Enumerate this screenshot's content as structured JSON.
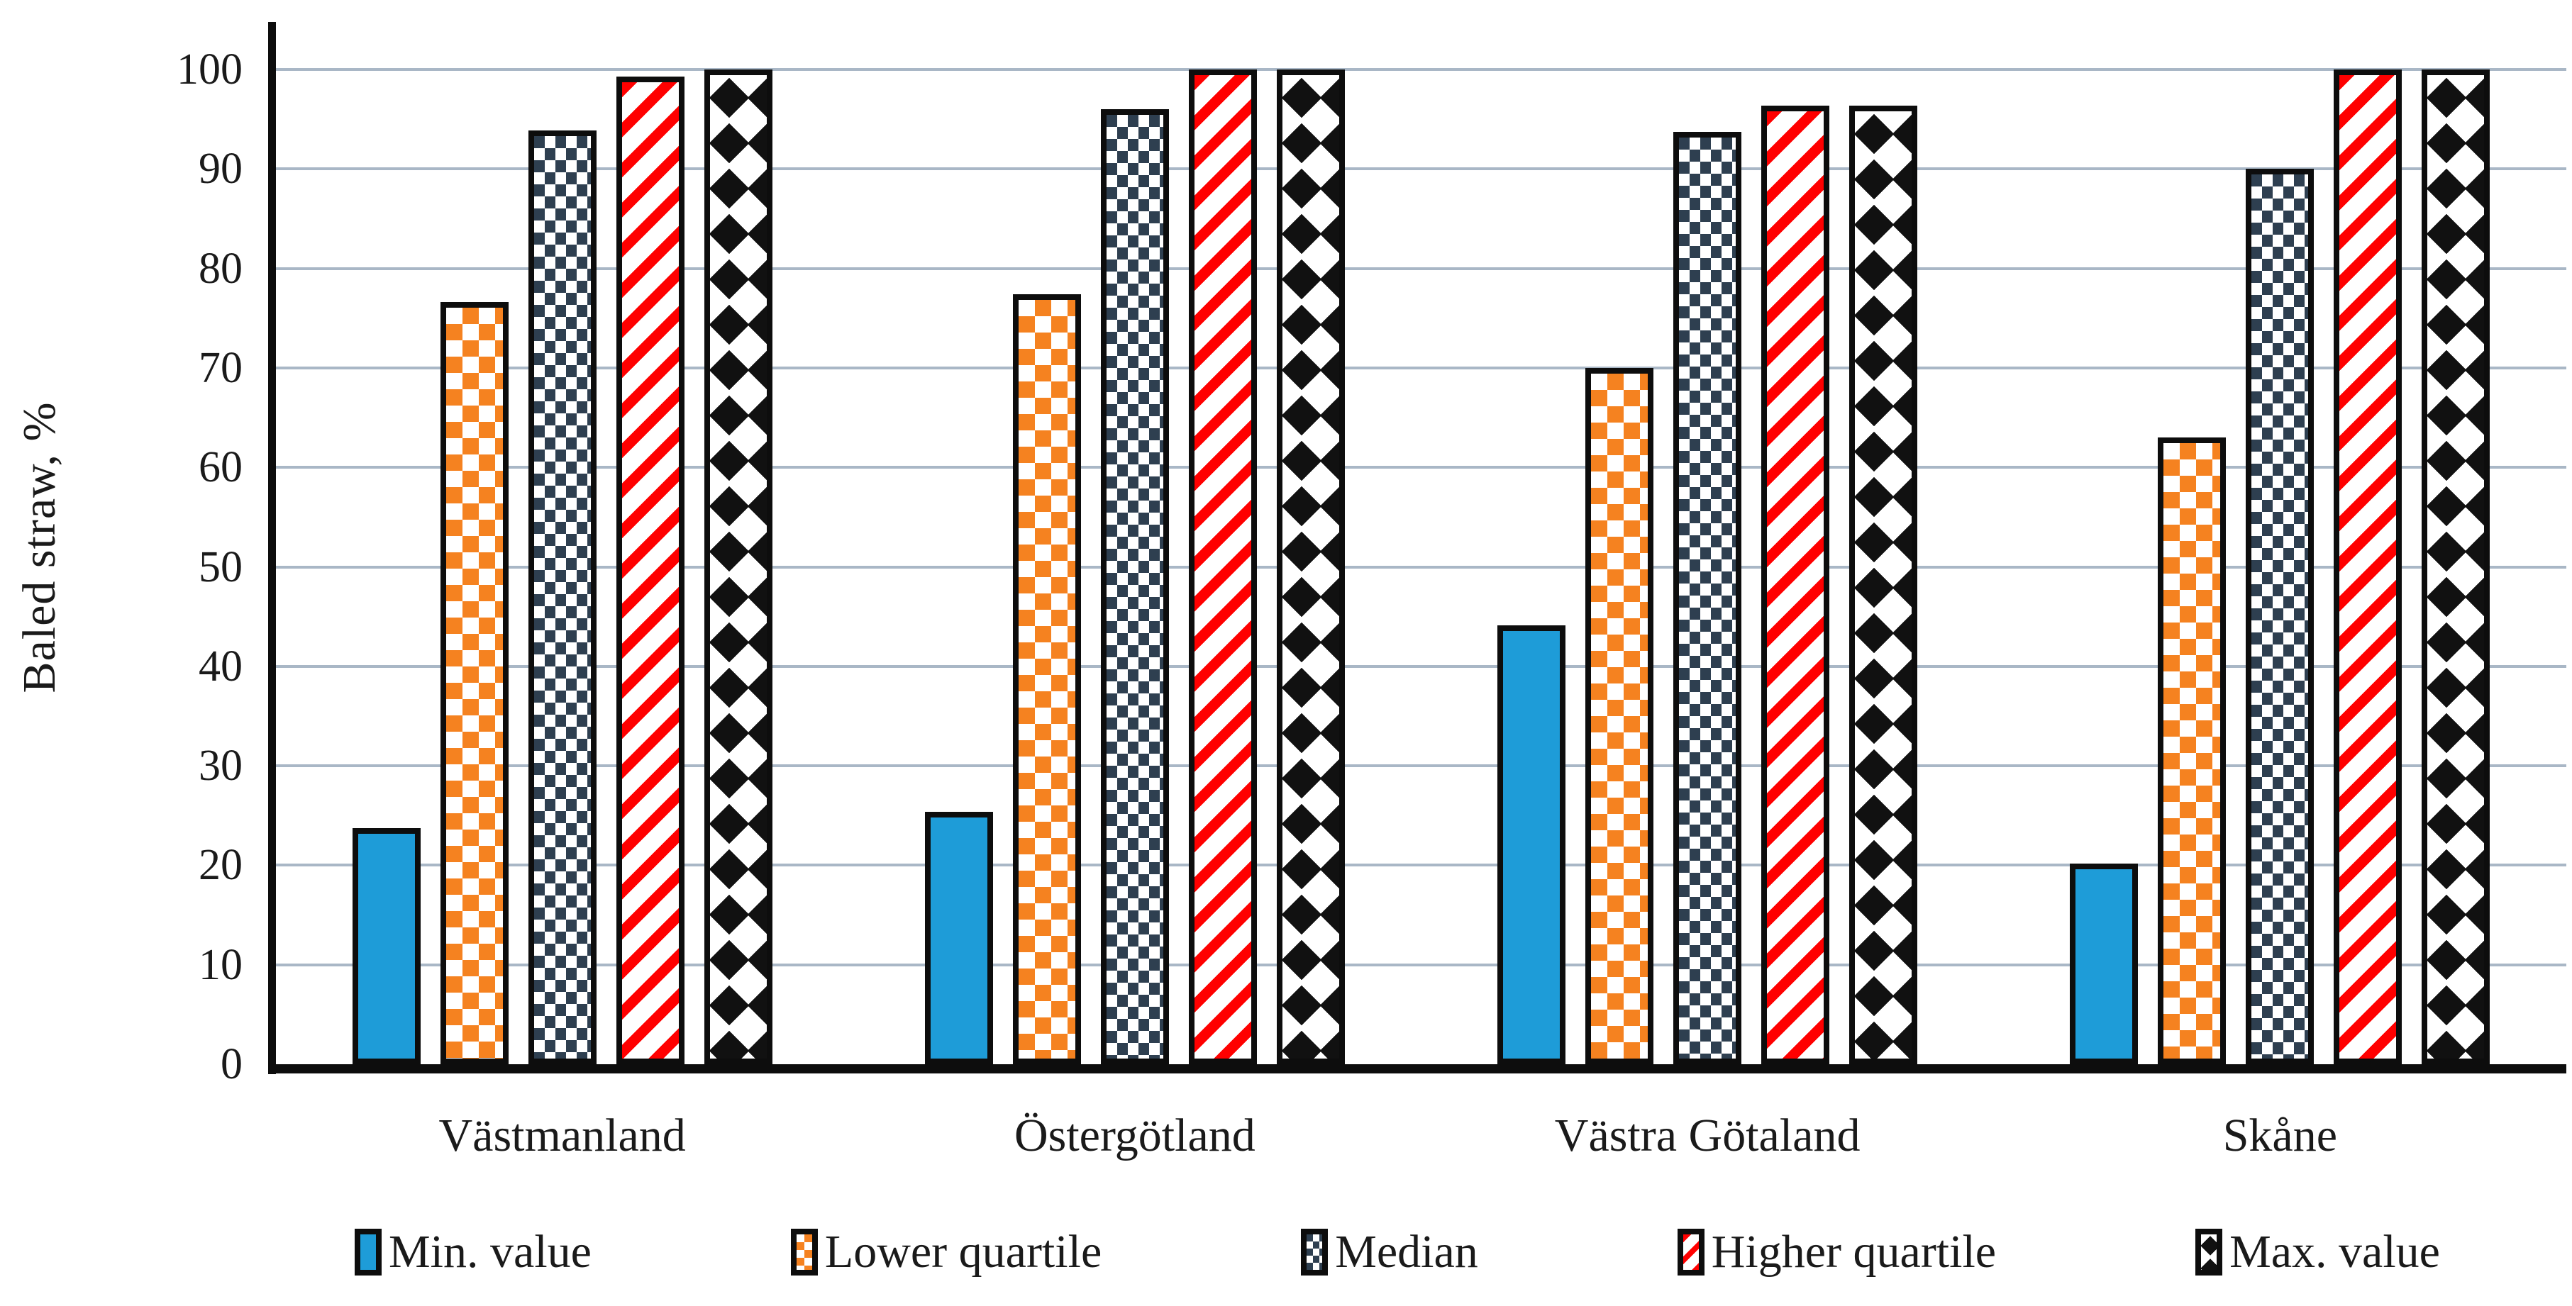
{
  "chart_data": {
    "type": "bar",
    "title": "",
    "ylabel": "Baled straw, %",
    "xlabel": "",
    "categories": [
      "Västmanland",
      "Östergötland",
      "Västra Götaland",
      "Skåne"
    ],
    "series": [
      {
        "name": "Min. value",
        "pattern": "solid-blue",
        "color": "#1E9CD8",
        "values": [
          23.7,
          25.4,
          44.1,
          20.2
        ]
      },
      {
        "name": "Lower quartile",
        "pattern": "orange-white-checker",
        "color": "#F58220",
        "values": [
          76.6,
          77.4,
          70.0,
          63.0
        ]
      },
      {
        "name": "Median",
        "pattern": "navy-dotted-squares",
        "color": "#2E3F50",
        "values": [
          93.9,
          96.0,
          93.7,
          90.0
        ]
      },
      {
        "name": "Higher quartile",
        "pattern": "red-diagonal-stripes",
        "color": "#FF0000",
        "values": [
          99.3,
          100.0,
          96.4,
          100.0
        ]
      },
      {
        "name": "Max. value",
        "pattern": "black-diamonds",
        "color": "#111111",
        "values": [
          100.0,
          100.0,
          96.4,
          100.0
        ]
      }
    ],
    "ylim": [
      0,
      100
    ],
    "yticks": [
      0,
      10,
      20,
      30,
      40,
      50,
      60,
      70,
      80,
      90,
      100
    ],
    "grid": "horizontal",
    "gridline_color": "#A9B7C6",
    "axis_color": "#0D0D0D",
    "legend_position": "bottom"
  }
}
